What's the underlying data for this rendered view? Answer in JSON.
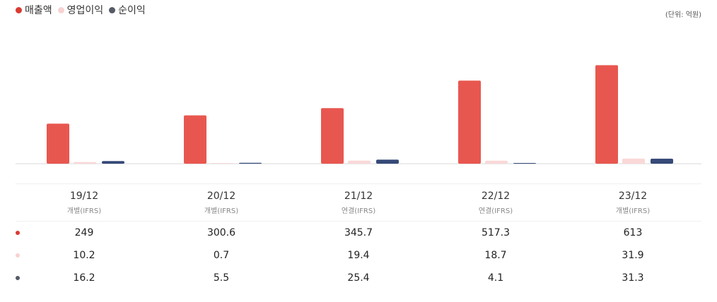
{
  "legend": [
    {
      "label": "매출액",
      "color": "#d93b32"
    },
    {
      "label": "영업이익",
      "color": "#f8d2d2"
    },
    {
      "label": "순이익",
      "color": "#555a66"
    }
  ],
  "unit_label": "(단위: 억원)",
  "chart_data": {
    "type": "bar",
    "categories": [
      "19/12",
      "20/12",
      "21/12",
      "22/12",
      "23/12"
    ],
    "bases": [
      "개별(IFRS)",
      "개별(IFRS)",
      "연결(IFRS)",
      "연결(IFRS)",
      "개별(IFRS)"
    ],
    "series": [
      {
        "name": "매출액",
        "values": [
          249,
          300.6,
          345.7,
          517.3,
          613
        ],
        "color": "#e8574f"
      },
      {
        "name": "영업이익",
        "values": [
          10.2,
          0.7,
          19.4,
          18.7,
          31.9
        ],
        "color": "#fad8d8"
      },
      {
        "name": "순이익",
        "values": [
          16.2,
          5.5,
          25.4,
          4.1,
          31.3
        ],
        "color": "#364a78"
      }
    ],
    "value_rows": [
      {
        "values": [
          "249",
          "300.6",
          "345.7",
          "517.3",
          "613"
        ],
        "dot_color": "#d93b32"
      },
      {
        "values": [
          "10.2",
          "0.7",
          "19.4",
          "18.7",
          "31.9"
        ],
        "dot_color": "#f8d2d2"
      },
      {
        "values": [
          "16.2",
          "5.5",
          "25.4",
          "4.1",
          "31.3"
        ],
        "dot_color": "#555a66"
      }
    ]
  }
}
